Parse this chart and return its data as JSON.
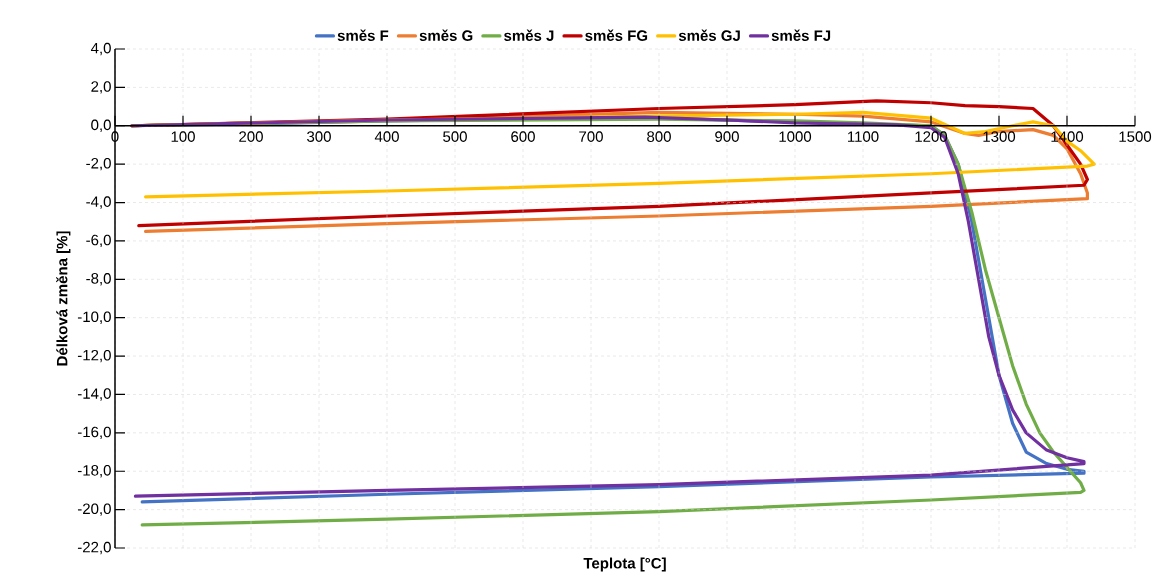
{
  "chart_data": {
    "type": "line",
    "xlabel": "Teplota [°C]",
    "ylabel": "Délková změna [%]",
    "xlim": [
      0,
      1500
    ],
    "ylim": [
      -22,
      4
    ],
    "xticks": [
      0,
      100,
      200,
      300,
      400,
      500,
      600,
      700,
      800,
      900,
      1000,
      1100,
      1200,
      1300,
      1400,
      1500
    ],
    "yticks": [
      {
        "value": -22,
        "label": "-22,0"
      },
      {
        "value": -20,
        "label": "-20,0"
      },
      {
        "value": -18,
        "label": "-18,0"
      },
      {
        "value": -16,
        "label": "-16,0"
      },
      {
        "value": -14,
        "label": "-14,0"
      },
      {
        "value": -12,
        "label": "-12,0"
      },
      {
        "value": -10,
        "label": "-10,0"
      },
      {
        "value": -8,
        "label": "-8,0"
      },
      {
        "value": -6,
        "label": "-6,0"
      },
      {
        "value": -4,
        "label": "-4,0"
      },
      {
        "value": -2,
        "label": "-2,0"
      },
      {
        "value": 0,
        "label": "0,0"
      },
      {
        "value": 2,
        "label": "2,0"
      },
      {
        "value": 4,
        "label": "4,0"
      }
    ],
    "grid": true,
    "legend": "top",
    "marker": "none",
    "line_style": "solid",
    "series": [
      {
        "name": "směs F",
        "color": "#4472c4",
        "x": [
          25,
          200,
          400,
          600,
          800,
          1000,
          1100,
          1200,
          1220,
          1240,
          1260,
          1280,
          1300,
          1320,
          1340,
          1370,
          1400,
          1425,
          1425,
          1200,
          800,
          400,
          40
        ],
        "values": [
          0,
          0.1,
          0.25,
          0.35,
          0.4,
          0.2,
          0.1,
          0,
          -0.5,
          -2,
          -5,
          -9,
          -13,
          -15.5,
          -17,
          -17.6,
          -17.9,
          -18.0,
          -18.1,
          -18.3,
          -18.8,
          -19.2,
          -19.6
        ]
      },
      {
        "name": "směs G",
        "color": "#ed7d31",
        "x": [
          25,
          400,
          800,
          1000,
          1100,
          1200,
          1250,
          1270,
          1300,
          1350,
          1380,
          1400,
          1420,
          1430,
          1430,
          1200,
          800,
          400,
          45
        ],
        "values": [
          0,
          0.3,
          0.7,
          0.6,
          0.5,
          0.2,
          -0.4,
          -0.5,
          -0.3,
          -0.2,
          -0.5,
          -1.2,
          -2.5,
          -3.5,
          -3.8,
          -4.2,
          -4.7,
          -5.1,
          -5.5
        ]
      },
      {
        "name": "směs J",
        "color": "#70ad47",
        "x": [
          25,
          400,
          800,
          1000,
          1100,
          1200,
          1220,
          1240,
          1260,
          1280,
          1300,
          1320,
          1340,
          1360,
          1380,
          1400,
          1420,
          1425,
          1420,
          1200,
          800,
          400,
          40
        ],
        "values": [
          0,
          0.25,
          0.35,
          0.25,
          0.15,
          0,
          -0.5,
          -2,
          -4.5,
          -7.5,
          -10,
          -12.5,
          -14.5,
          -16,
          -17,
          -17.8,
          -18.6,
          -19.0,
          -19.1,
          -19.5,
          -20.1,
          -20.5,
          -20.8
        ]
      },
      {
        "name": "směs FG",
        "color": "#c00000",
        "x": [
          25,
          400,
          800,
          1000,
          1120,
          1200,
          1250,
          1300,
          1350,
          1380,
          1400,
          1420,
          1430,
          1425,
          1200,
          800,
          400,
          35
        ],
        "values": [
          0,
          0.35,
          0.9,
          1.1,
          1.3,
          1.2,
          1.05,
          1.0,
          0.9,
          0,
          -1,
          -2,
          -2.8,
          -3.1,
          -3.5,
          -4.2,
          -4.7,
          -5.2
        ]
      },
      {
        "name": "směs GJ",
        "color": "#ffc000",
        "x": [
          25,
          400,
          800,
          1000,
          1100,
          1200,
          1250,
          1280,
          1320,
          1350,
          1380,
          1400,
          1420,
          1440,
          1430,
          1200,
          800,
          400,
          45
        ],
        "values": [
          0,
          0.3,
          0.5,
          0.6,
          0.7,
          0.4,
          -0.4,
          -0.3,
          0,
          0.2,
          0,
          -0.8,
          -1.3,
          -2,
          -2.1,
          -2.5,
          -3.0,
          -3.4,
          -3.7
        ]
      },
      {
        "name": "směs FJ",
        "color": "#7030a0",
        "x": [
          25,
          400,
          780,
          900,
          1000,
          1150,
          1200,
          1220,
          1240,
          1255,
          1270,
          1285,
          1300,
          1320,
          1340,
          1370,
          1400,
          1425,
          1425,
          1200,
          800,
          400,
          30
        ],
        "values": [
          0,
          0.3,
          0.45,
          0.3,
          0.15,
          0.05,
          -0.1,
          -0.6,
          -2.5,
          -5,
          -8,
          -11,
          -13,
          -14.8,
          -16,
          -16.9,
          -17.3,
          -17.5,
          -17.6,
          -18.2,
          -18.7,
          -19.0,
          -19.3
        ]
      }
    ]
  }
}
